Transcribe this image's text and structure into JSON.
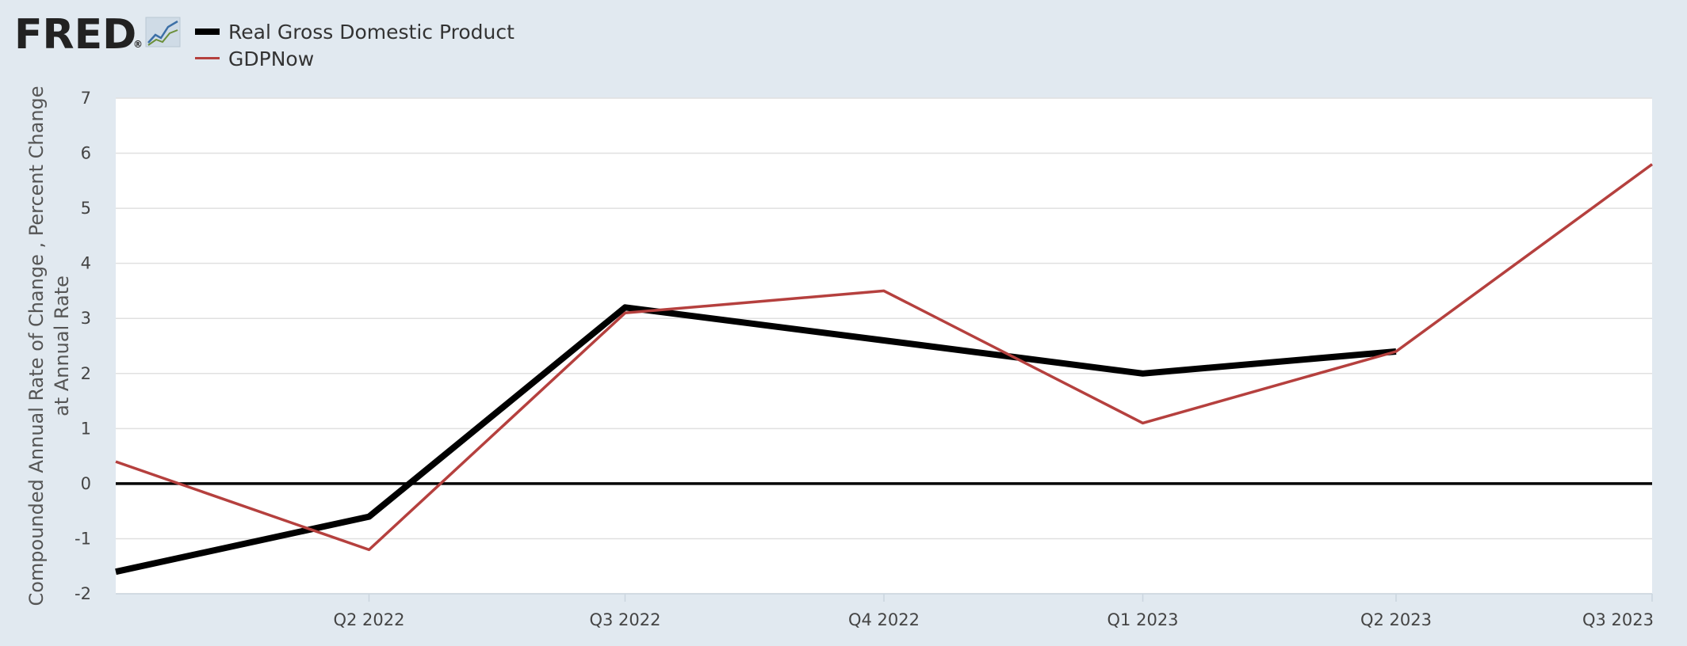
{
  "logo": {
    "text": "FRED",
    "registered": "®",
    "icon": "line-chart-icon"
  },
  "colors": {
    "background": "#e1e9f0",
    "plot_background": "#ffffff",
    "gdp_line": "#000000",
    "gdpnow_line": "#b5403e",
    "grid": "#e0e0e0",
    "zero_line": "#000000"
  },
  "legend": [
    {
      "label": "Real Gross Domestic Product",
      "color": "#000000"
    },
    {
      "label": "GDPNow",
      "color": "#b5403e"
    }
  ],
  "chart_data": {
    "type": "line",
    "ylabel": [
      "Compounded Annual Rate of Change , Percent Change",
      "at Annual Rate"
    ],
    "xlabel": "",
    "ylim": [
      -2,
      7
    ],
    "yticks": [
      7,
      6,
      5,
      4,
      3,
      2,
      1,
      0,
      -1,
      -2
    ],
    "x_range": [
      "2022-01-01",
      "2023-07-01"
    ],
    "x_ticks": [
      {
        "date": "2022-04-01",
        "label": "Q2 2022"
      },
      {
        "date": "2022-07-01",
        "label": "Q3 2022"
      },
      {
        "date": "2022-10-01",
        "label": "Q4 2022"
      },
      {
        "date": "2023-01-01",
        "label": "Q1 2023"
      },
      {
        "date": "2023-04-01",
        "label": "Q2 2023"
      },
      {
        "date": "2023-07-01",
        "label": "Q3 2023"
      }
    ],
    "grid": true,
    "legend_position": "top-left",
    "series": [
      {
        "name": "Real Gross Domestic Product",
        "color": "#000000",
        "points": [
          {
            "date": "2022-01-01",
            "value": -1.6
          },
          {
            "date": "2022-04-01",
            "value": -0.6
          },
          {
            "date": "2022-07-01",
            "value": 3.2
          },
          {
            "date": "2022-10-01",
            "value": 2.6
          },
          {
            "date": "2023-01-01",
            "value": 2.0
          },
          {
            "date": "2023-04-01",
            "value": 2.4
          }
        ]
      },
      {
        "name": "GDPNow",
        "color": "#b5403e",
        "points": [
          {
            "date": "2022-01-01",
            "value": 0.4
          },
          {
            "date": "2022-04-01",
            "value": -1.2
          },
          {
            "date": "2022-07-01",
            "value": 3.1
          },
          {
            "date": "2022-10-01",
            "value": 3.5
          },
          {
            "date": "2023-01-01",
            "value": 1.1
          },
          {
            "date": "2023-04-01",
            "value": 2.4
          },
          {
            "date": "2023-07-01",
            "value": 5.8
          }
        ]
      }
    ]
  }
}
